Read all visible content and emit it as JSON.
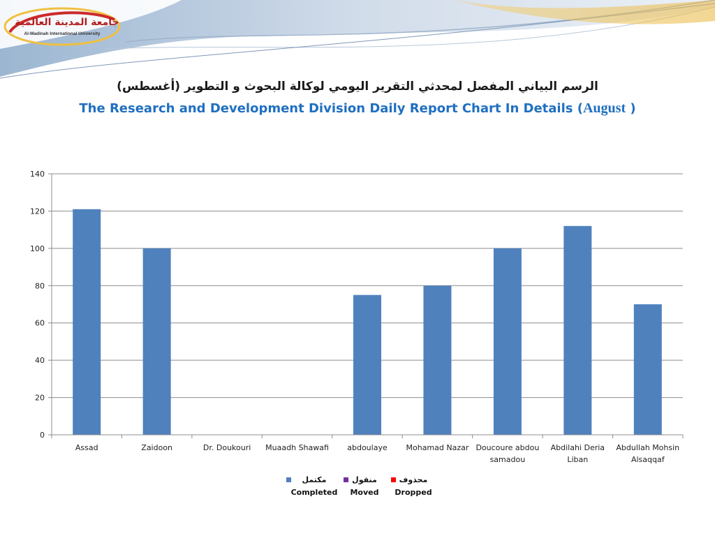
{
  "logo": {
    "arabic": "جامعة المدينة العالمية",
    "english": "Al-Madinah International University"
  },
  "title": {
    "arabic": "الرسم البياني المفصل لمحدثي التقرير اليومي لوكالة البحوث و التطوير (أغسطس)",
    "english": "The Research and Development Division Daily Report Chart In Details (",
    "month": "August",
    "close": " )"
  },
  "legend": [
    {
      "arabic": "مكتمل",
      "english": "Completed",
      "color": "#4f81bd"
    },
    {
      "arabic": "منقول",
      "english": "Moved",
      "color": "#7030a0"
    },
    {
      "arabic": "محذوف",
      "english": "Dropped",
      "color": "#ff0000"
    }
  ],
  "chart_data": {
    "type": "bar",
    "categories": [
      "Assad",
      "Zaidoon",
      "Dr. Doukouri",
      "Muaadh Shawafi",
      "abdoulaye",
      "Mohamad Nazar",
      "Doucoure abdou samadou",
      "Abdilahi Deria Liban",
      "Abdullah Mohsin Alsaqqaf"
    ],
    "series": [
      {
        "name": "Completed",
        "color": "#4f81bd",
        "values": [
          121,
          100,
          0,
          0,
          75,
          80,
          100,
          112,
          70
        ]
      },
      {
        "name": "Moved",
        "color": "#7030a0",
        "values": [
          0,
          0,
          0,
          0,
          0,
          0,
          0,
          0,
          0
        ]
      },
      {
        "name": "Dropped",
        "color": "#ff0000",
        "values": [
          0,
          0,
          0,
          0,
          0,
          0,
          0,
          0,
          0
        ]
      }
    ],
    "ylim": [
      0,
      140
    ],
    "yticks": [
      0,
      20,
      40,
      60,
      80,
      100,
      120,
      140
    ],
    "grid": true,
    "legend_position": "bottom"
  }
}
